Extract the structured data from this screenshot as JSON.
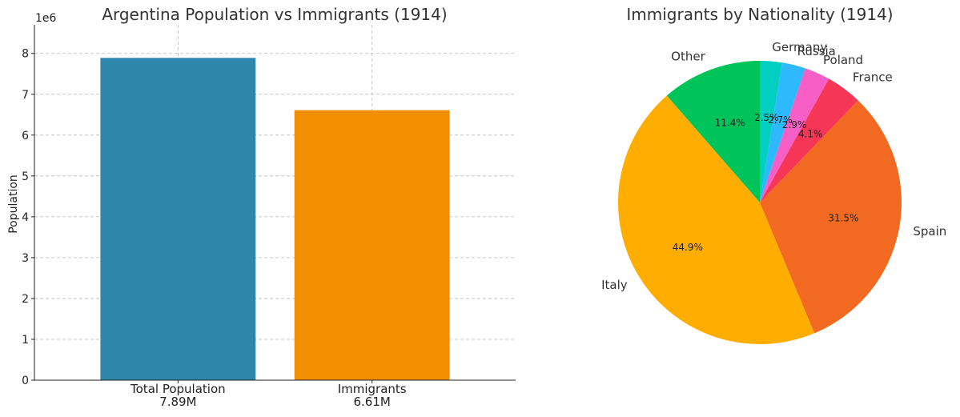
{
  "chart_data": [
    {
      "type": "bar",
      "title": "Argentina Population vs Immigrants (1914)",
      "ylabel": "Population",
      "y_scale_label": "1e6",
      "y_ticks": [
        0,
        1,
        2,
        3,
        4,
        5,
        6,
        7,
        8
      ],
      "ylim": [
        0,
        8.7
      ],
      "grid": true,
      "categories": [
        "Total Population",
        "Immigrants"
      ],
      "value_labels": [
        "7.89M",
        "6.61M"
      ],
      "values": [
        7.89,
        6.61
      ],
      "colors": [
        "#2e86ab",
        "#f18f01"
      ]
    },
    {
      "type": "pie",
      "title": "Immigrants by Nationality (1914)",
      "start_angle_deg": 90,
      "direction": "counterclockwise",
      "slices": [
        {
          "label": "Other",
          "pct_label": "11.4%",
          "value": 11.4,
          "color": "#00c45a"
        },
        {
          "label": "Italy",
          "pct_label": "44.9%",
          "value": 44.9,
          "color": "#ffad00"
        },
        {
          "label": "Spain",
          "pct_label": "31.5%",
          "value": 31.5,
          "color": "#f26a21"
        },
        {
          "label": "France",
          "pct_label": "4.1%",
          "value": 4.1,
          "color": "#f53657"
        },
        {
          "label": "Poland",
          "pct_label": "2.9%",
          "value": 2.9,
          "color": "#f75fc7"
        },
        {
          "label": "Russia",
          "pct_label": "2.7%",
          "value": 2.7,
          "color": "#2db9fb"
        },
        {
          "label": "Germany",
          "pct_label": "2.5%",
          "value": 2.5,
          "color": "#00cfc1"
        }
      ]
    }
  ]
}
